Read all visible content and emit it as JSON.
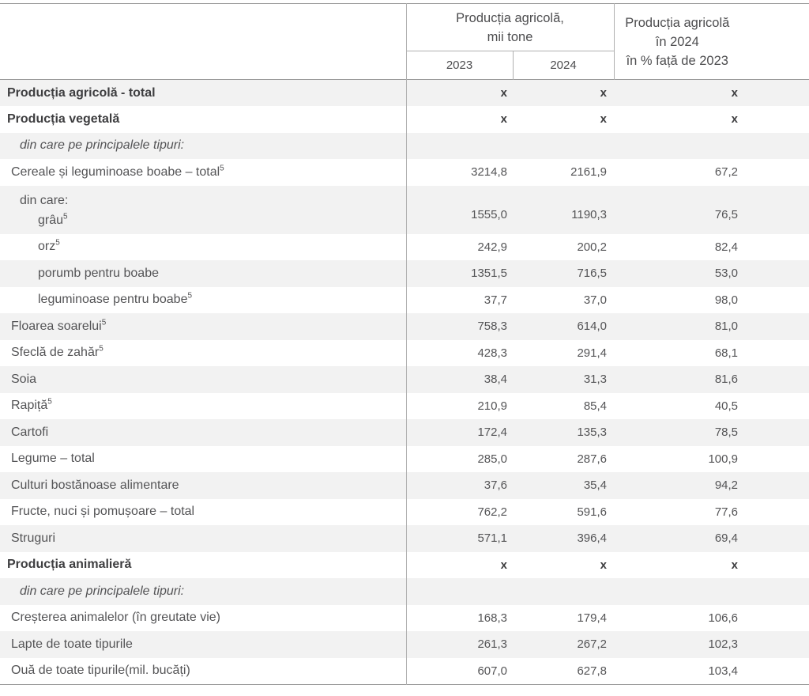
{
  "table": {
    "header": {
      "group_title_line1": "Producția agricolă,",
      "group_title_line2": "mii tone",
      "col_2023": "2023",
      "col_2024": "2024",
      "pct_title_line1": "Producția agricolă",
      "pct_title_line2": "în 2024",
      "pct_title_line3": "în % față de 2023"
    },
    "rows": [
      {
        "label": "Producția agricolă - total",
        "style": "bold",
        "level": 0,
        "values": [
          "x",
          "x",
          "x"
        ]
      },
      {
        "label": "Producția vegetală",
        "style": "bold",
        "level": 0,
        "values": [
          "x",
          "x",
          "x"
        ]
      },
      {
        "label": "din care pe principalele tipuri:",
        "style": "italic",
        "level": 2,
        "values": [
          "",
          "",
          ""
        ]
      },
      {
        "label": "Cereale și leguminoase boabe – total",
        "sup": "5",
        "style": "normal",
        "level": 1,
        "values": [
          "3214,8",
          "2161,9",
          "67,2"
        ]
      },
      {
        "label": "din care:",
        "level": 2,
        "label2": "grâu",
        "label2_sup": "5",
        "label2_level": 3,
        "style": "normal",
        "tall": true,
        "values": [
          "1555,0",
          "1190,3",
          "76,5"
        ]
      },
      {
        "label": "orz",
        "sup": "5",
        "style": "normal",
        "level": 3,
        "values": [
          "242,9",
          "200,2",
          "82,4"
        ]
      },
      {
        "label": "porumb pentru boabe",
        "style": "normal",
        "level": 3,
        "values": [
          "1351,5",
          "716,5",
          "53,0"
        ]
      },
      {
        "label": "leguminoase pentru boabe",
        "sup": "5",
        "style": "normal",
        "level": 3,
        "values": [
          "37,7",
          "37,0",
          "98,0"
        ]
      },
      {
        "label": "Floarea soarelui",
        "sup": "5",
        "style": "normal",
        "level": 1,
        "values": [
          "758,3",
          "614,0",
          "81,0"
        ]
      },
      {
        "label": "Sfeclă de zahăr",
        "sup": "5",
        "style": "normal",
        "level": 1,
        "values": [
          "428,3",
          "291,4",
          "68,1"
        ]
      },
      {
        "label": "Soia",
        "style": "normal",
        "level": 1,
        "values": [
          "38,4",
          "31,3",
          "81,6"
        ]
      },
      {
        "label": "Rapiță",
        "sup": "5",
        "style": "normal",
        "level": 1,
        "values": [
          "210,9",
          "85,4",
          "40,5"
        ]
      },
      {
        "label": "Cartofi",
        "style": "normal",
        "level": 1,
        "values": [
          "172,4",
          "135,3",
          "78,5"
        ]
      },
      {
        "label": "Legume – total",
        "style": "normal",
        "level": 1,
        "values": [
          "285,0",
          "287,6",
          "100,9"
        ]
      },
      {
        "label": "Culturi bostănoase alimentare",
        "style": "normal",
        "level": 1,
        "values": [
          "37,6",
          "35,4",
          "94,2"
        ]
      },
      {
        "label": "Fructe, nuci și pomușoare – total",
        "style": "normal",
        "level": 1,
        "values": [
          "762,2",
          "591,6",
          "77,6"
        ]
      },
      {
        "label": "Struguri",
        "style": "normal",
        "level": 1,
        "values": [
          "571,1",
          "396,4",
          "69,4"
        ]
      },
      {
        "label": "Producția animalieră",
        "style": "bold",
        "level": 0,
        "values": [
          "x",
          "x",
          "x"
        ]
      },
      {
        "label": "din care pe principalele tipuri:",
        "style": "italic",
        "level": 2,
        "values": [
          "",
          "",
          ""
        ]
      },
      {
        "label": "Creșterea animalelor (în greutate vie)",
        "style": "normal",
        "level": 1,
        "values": [
          "168,3",
          "179,4",
          "106,6"
        ]
      },
      {
        "label": "Lapte de toate tipurile",
        "style": "normal",
        "level": 1,
        "values": [
          "261,3",
          "267,2",
          "102,3"
        ]
      },
      {
        "label": "Ouă de toate tipurile(mil. bucăți)",
        "style": "normal",
        "level": 1,
        "values": [
          "607,0",
          "627,8",
          "103,4"
        ]
      }
    ]
  },
  "colors": {
    "text": "#545456",
    "bold_text": "#3e3e40",
    "alt_row_bg": "#f2f2f2",
    "border_strong": "#9a9a9a",
    "border_light": "#b0b0b0"
  }
}
